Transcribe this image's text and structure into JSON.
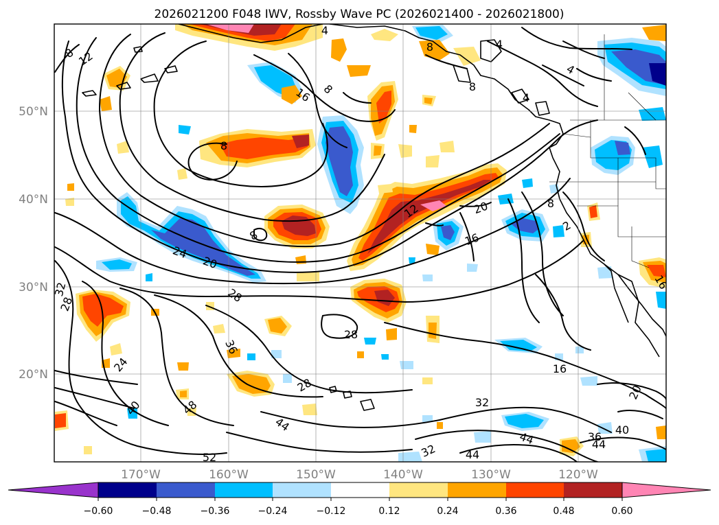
{
  "title": "2026021200 F048 IWV, Rossby Wave PC (2026021400 - 2026021800)",
  "latitude_labels": [
    "50°N",
    "40°N",
    "30°N",
    "20°N"
  ],
  "longitude_labels": [
    "170°W",
    "160°W",
    "150°W",
    "140°W",
    "130°W",
    "120°W"
  ],
  "contour_labels": [
    {
      "text": "8",
      "slot": "a"
    },
    {
      "text": "12",
      "slot": "b"
    },
    {
      "text": "16",
      "slot": "c"
    },
    {
      "text": "8",
      "slot": "d"
    },
    {
      "text": "4",
      "slot": "e"
    },
    {
      "text": "8",
      "slot": "f"
    },
    {
      "text": "4",
      "slot": "g"
    },
    {
      "text": "4",
      "slot": "h"
    },
    {
      "text": "8",
      "slot": "i"
    },
    {
      "text": "4",
      "slot": "j"
    },
    {
      "text": "12",
      "slot": "k"
    },
    {
      "text": "20",
      "slot": "l"
    },
    {
      "text": "16",
      "slot": "m"
    },
    {
      "text": "8",
      "slot": "n"
    },
    {
      "text": "2",
      "slot": "o"
    },
    {
      "text": "8",
      "slot": "p"
    },
    {
      "text": "24",
      "slot": "q"
    },
    {
      "text": "20",
      "slot": "r"
    },
    {
      "text": "32",
      "slot": "s"
    },
    {
      "text": "28",
      "slot": "t"
    },
    {
      "text": "28",
      "slot": "u"
    },
    {
      "text": "36",
      "slot": "v"
    },
    {
      "text": "28",
      "slot": "w"
    },
    {
      "text": "24",
      "slot": "x"
    },
    {
      "text": "16",
      "slot": "y"
    },
    {
      "text": "28",
      "slot": "z"
    },
    {
      "text": "40",
      "slot": "aa"
    },
    {
      "text": "48",
      "slot": "ab"
    },
    {
      "text": "32",
      "slot": "ac"
    },
    {
      "text": "44",
      "slot": "ad"
    },
    {
      "text": "44",
      "slot": "ae"
    },
    {
      "text": "36",
      "slot": "af"
    },
    {
      "text": "40",
      "slot": "ag"
    },
    {
      "text": "44",
      "slot": "ah"
    },
    {
      "text": "32",
      "slot": "ai"
    },
    {
      "text": "44",
      "slot": "aj"
    },
    {
      "text": "20",
      "slot": "ak"
    },
    {
      "text": "52",
      "slot": "al"
    },
    {
      "text": "16",
      "slot": "am"
    },
    {
      "text": "8",
      "slot": "an"
    }
  ],
  "colorbar": {
    "tick_labels": [
      "−0.60",
      "−0.48",
      "−0.36",
      "−0.24",
      "−0.12",
      "0.12",
      "0.24",
      "0.36",
      "0.48",
      "0.60"
    ],
    "colors": [
      "#9933cc",
      "#00008b",
      "#3a5acd",
      "#00bfff",
      "#b0e2ff",
      "#ffffff",
      "#ffe680",
      "#ffa500",
      "#ff4500",
      "#b22222",
      "#ff85b4"
    ]
  },
  "palette": {
    "neg_strong": "#3a5acd",
    "neg_darkest": "#00008b",
    "neg_mid": "#00bfff",
    "neg_light": "#b0e2ff",
    "pos_light": "#ffe680",
    "pos_mid": "#ffa500",
    "pos_strong": "#ff4500",
    "pos_darker": "#b22222",
    "pos_max": "#ff85b4"
  }
}
